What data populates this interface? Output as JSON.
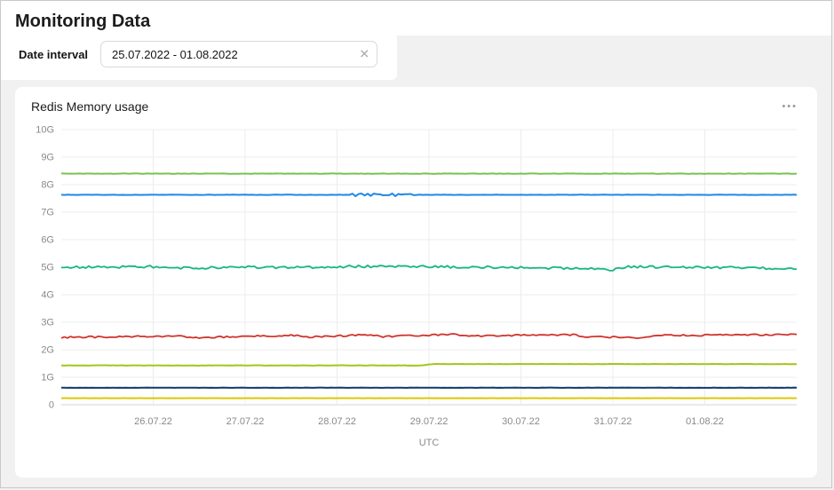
{
  "page": {
    "title": "Monitoring Data"
  },
  "filter": {
    "label": "Date interval",
    "value": "25.07.2022 - 01.08.2022",
    "clear_icon": "✕"
  },
  "card": {
    "title": "Redis Memory usage",
    "menu_icon": "•••"
  },
  "chart_data": {
    "type": "line",
    "title": "Redis Memory usage",
    "xlabel": "UTC",
    "ylabel": "",
    "ylim": [
      0,
      10
    ],
    "y_tick_labels": [
      "0",
      "1G",
      "2G",
      "3G",
      "4G",
      "5G",
      "6G",
      "7G",
      "8G",
      "9G",
      "10G"
    ],
    "x_domain_days": [
      0,
      8
    ],
    "x_ticks": [
      {
        "day": 1,
        "label": "26.07.22"
      },
      {
        "day": 2,
        "label": "27.07.22"
      },
      {
        "day": 3,
        "label": "28.07.22"
      },
      {
        "day": 4,
        "label": "29.07.22"
      },
      {
        "day": 5,
        "label": "30.07.22"
      },
      {
        "day": 6,
        "label": "31.07.22"
      },
      {
        "day": 7,
        "label": "01.08.22"
      }
    ],
    "grid": true,
    "legend": "none",
    "grid_color": "#ececec",
    "axis_color": "#d6d6d6",
    "tick_text_color": "#8a8a8a",
    "series": [
      {
        "name": "series-green-8.4G",
        "color": "#77c353",
        "stroke_width": 2,
        "noise": 0.008,
        "points": [
          [
            0,
            8.4
          ],
          [
            8,
            8.4
          ]
        ]
      },
      {
        "name": "series-blue-7.6G",
        "color": "#1e88e5",
        "stroke_width": 2,
        "noise": 0.006,
        "points": [
          [
            0,
            7.63
          ],
          [
            8,
            7.63
          ]
        ],
        "burst": {
          "range": [
            3.15,
            3.85
          ],
          "amp": 0.05
        }
      },
      {
        "name": "series-teal-5G",
        "color": "#16b97d",
        "stroke_width": 1.8,
        "noise": 0.045,
        "points": [
          [
            0,
            5.0
          ],
          [
            1,
            5.02
          ],
          [
            1.1,
            4.96
          ],
          [
            2,
            5.0
          ],
          [
            3,
            4.98
          ],
          [
            3.1,
            5.03
          ],
          [
            4,
            5.02
          ],
          [
            5,
            4.99
          ],
          [
            5.8,
            4.95
          ],
          [
            6,
            4.9
          ],
          [
            6.15,
            5.02
          ],
          [
            7,
            4.99
          ],
          [
            8,
            4.95
          ]
        ]
      },
      {
        "name": "series-red-2.5G",
        "color": "#d0342c",
        "stroke_width": 1.8,
        "noise": 0.03,
        "points": [
          [
            0,
            2.45
          ],
          [
            1.3,
            2.5
          ],
          [
            1.45,
            2.44
          ],
          [
            2.55,
            2.52
          ],
          [
            2.7,
            2.46
          ],
          [
            3.35,
            2.55
          ],
          [
            3.5,
            2.47
          ],
          [
            4.25,
            2.57
          ],
          [
            4.4,
            2.5
          ],
          [
            5.55,
            2.55
          ],
          [
            5.7,
            2.48
          ],
          [
            6.3,
            2.43
          ],
          [
            6.55,
            2.52
          ],
          [
            8,
            2.55
          ]
        ]
      },
      {
        "name": "series-lime-1.45G",
        "color": "#a3c61c",
        "stroke_width": 2,
        "noise": 0.006,
        "points": [
          [
            0,
            1.43
          ],
          [
            3.9,
            1.43
          ],
          [
            4.05,
            1.48
          ],
          [
            8,
            1.48
          ]
        ]
      },
      {
        "name": "series-navy-0.6G",
        "color": "#0f3a68",
        "stroke_width": 2,
        "noise": 0.004,
        "points": [
          [
            0,
            0.62
          ],
          [
            8,
            0.62
          ]
        ]
      },
      {
        "name": "series-yellow-0.25G",
        "color": "#ddc706",
        "stroke_width": 2,
        "noise": 0.004,
        "points": [
          [
            0,
            0.24
          ],
          [
            8,
            0.24
          ]
        ]
      }
    ]
  }
}
